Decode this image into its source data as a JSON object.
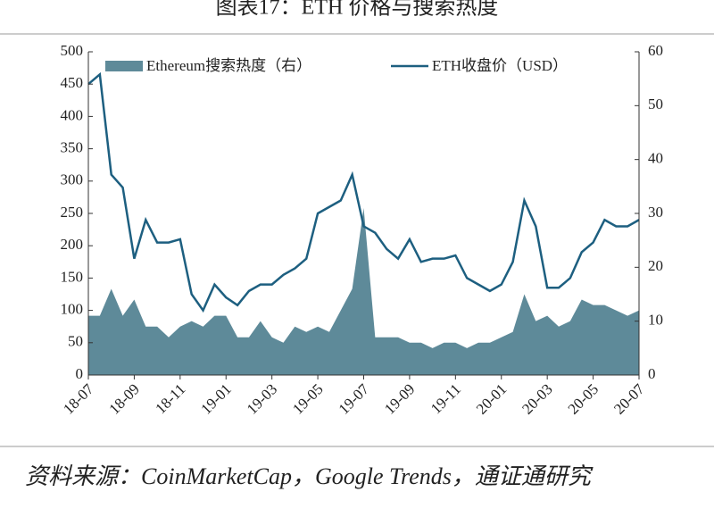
{
  "chart_data": {
    "type": "bar-line-dual",
    "title": "图表17：ETH 价格与搜索热度",
    "source": "资料来源：CoinMarketCap，Google Trends，通证通研究",
    "categories": [
      "18-07",
      null,
      null,
      null,
      "18-09",
      null,
      null,
      null,
      "18-11",
      null,
      null,
      null,
      "19-01",
      null,
      null,
      null,
      "19-03",
      null,
      null,
      null,
      "19-05",
      null,
      null,
      null,
      "19-07",
      null,
      null,
      null,
      "19-09",
      null,
      null,
      null,
      "19-11",
      null,
      null,
      null,
      "20-01",
      null,
      null,
      null,
      "20-03",
      null,
      null,
      null,
      "20-05",
      null,
      null,
      null,
      "20-07"
    ],
    "series": [
      {
        "name": "Ethereum搜索热度（右）",
        "kind": "area",
        "axis": "y2",
        "color": "#5e8a99",
        "values": [
          11,
          11,
          16,
          11,
          14,
          9,
          9,
          7,
          9,
          10,
          9,
          11,
          11,
          7,
          7,
          10,
          7,
          6,
          9,
          8,
          9,
          8,
          12,
          16,
          31,
          7,
          7,
          7,
          6,
          6,
          5,
          6,
          6,
          5,
          6,
          6,
          7,
          8,
          15,
          10,
          11,
          9,
          10,
          14,
          13,
          13,
          12,
          11,
          12
        ]
      },
      {
        "name": "ETH收盘价（USD）",
        "kind": "line",
        "color": "#1d5f80",
        "values": [
          450,
          465,
          310,
          290,
          180,
          240,
          205,
          205,
          210,
          125,
          100,
          140,
          120,
          108,
          130,
          140,
          140,
          155,
          165,
          180,
          250,
          260,
          270,
          310,
          230,
          220,
          195,
          180,
          210,
          175,
          180,
          180,
          185,
          150,
          140,
          130,
          140,
          175,
          270,
          230,
          135,
          135,
          150,
          190,
          205,
          240,
          230,
          230,
          240
        ]
      }
    ],
    "ylim": [
      0,
      500
    ],
    "yticks": [
      0,
      50,
      100,
      150,
      200,
      250,
      300,
      350,
      400,
      450,
      500
    ],
    "y2lim": [
      0,
      60
    ],
    "y2ticks": [
      0,
      10,
      20,
      30,
      40,
      50,
      60
    ],
    "grid": false,
    "legend": "top"
  }
}
